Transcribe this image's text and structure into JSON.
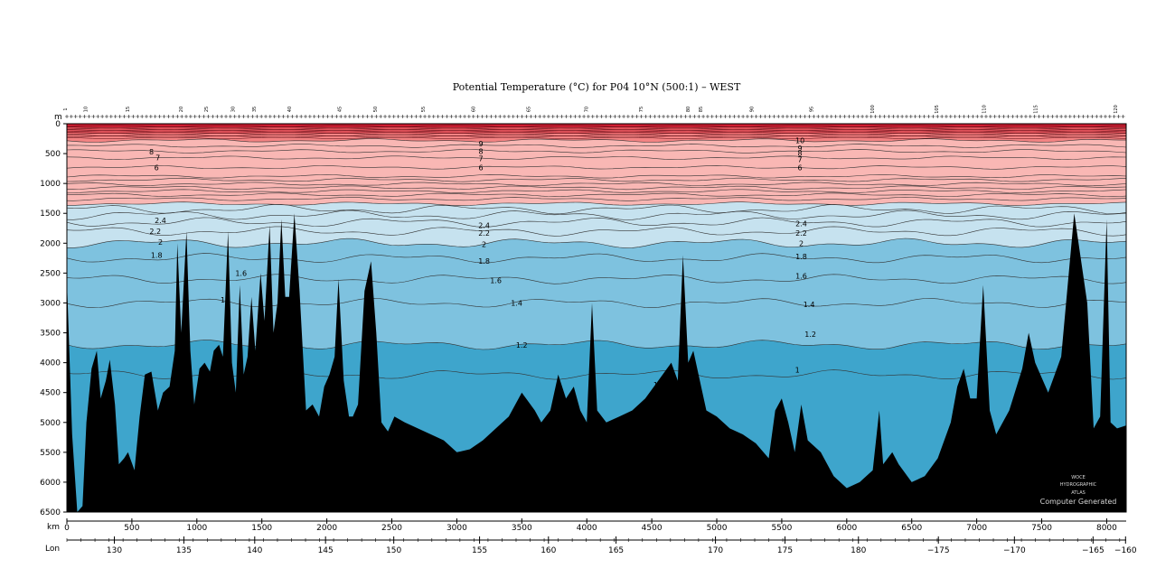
{
  "chart_data": {
    "type": "section",
    "title": "Potential Temperature (°C) for P04 10°N (500:1) – WEST",
    "y_axis_unit": "m",
    "x_axis_unit": "km",
    "lon_axis_label": "Lon",
    "ylim": [
      6500,
      0
    ],
    "xlim": [
      0,
      8150
    ],
    "depth_ticks": [
      0,
      500,
      1000,
      1500,
      2000,
      2500,
      3000,
      3500,
      4000,
      4500,
      5000,
      5500,
      6000,
      6500
    ],
    "km_ticks": [
      0,
      500,
      1000,
      1500,
      2000,
      2500,
      3000,
      3500,
      4000,
      4500,
      5000,
      5500,
      6000,
      6500,
      7000,
      7500,
      8000
    ],
    "lon_ticks": [
      {
        "value": 130,
        "label": "130"
      },
      {
        "value": 135,
        "label": "135"
      },
      {
        "value": 140,
        "label": "140"
      },
      {
        "value": 145,
        "label": "145"
      },
      {
        "value": 150,
        "label": "150"
      },
      {
        "value": 155,
        "label": "155"
      },
      {
        "value": 160,
        "label": "160"
      },
      {
        "value": 165,
        "label": "165"
      },
      {
        "value": 170,
        "label": "170"
      },
      {
        "value": 175,
        "label": "175"
      },
      {
        "value": 180,
        "label": "180"
      },
      {
        "value": -175,
        "label": "−175"
      },
      {
        "value": -170,
        "label": "−170"
      },
      {
        "value": -165,
        "label": "−165"
      },
      {
        "value": -160,
        "label": "−160"
      }
    ],
    "lon_positions_km": [
      365,
      900,
      1445,
      1990,
      2515,
      3175,
      3705,
      4225,
      4990,
      5525,
      6090,
      6705,
      7290,
      7895,
      8145
    ],
    "station_labels": [
      {
        "km": 0,
        "label": "1"
      },
      {
        "km": 155,
        "label": "10"
      },
      {
        "km": 480,
        "label": "15"
      },
      {
        "km": 890,
        "label": "20"
      },
      {
        "km": 1085,
        "label": "25"
      },
      {
        "km": 1290,
        "label": "30"
      },
      {
        "km": 1455,
        "label": "35"
      },
      {
        "km": 1725,
        "label": "40"
      },
      {
        "km": 2110,
        "label": "45"
      },
      {
        "km": 2385,
        "label": "50"
      },
      {
        "km": 2755,
        "label": "55"
      },
      {
        "km": 3140,
        "label": "60"
      },
      {
        "km": 3565,
        "label": "65"
      },
      {
        "km": 4010,
        "label": "70"
      },
      {
        "km": 4430,
        "label": "75"
      },
      {
        "km": 4790,
        "label": "80"
      },
      {
        "km": 4890,
        "label": "85"
      },
      {
        "km": 5280,
        "label": "90"
      },
      {
        "km": 5740,
        "label": "95"
      },
      {
        "km": 6210,
        "label": "100"
      },
      {
        "km": 6705,
        "label": "105"
      },
      {
        "km": 7070,
        "label": "110"
      },
      {
        "km": 7465,
        "label": "115"
      },
      {
        "km": 8080,
        "label": "120"
      }
    ],
    "color_bands": [
      {
        "min": 2.0,
        "max": 3.0,
        "color": "#c6e2ef"
      },
      {
        "min": 1.2,
        "max": 2.0,
        "color": "#7ec2df"
      },
      {
        "min": 0.9,
        "max": 1.2,
        "color": "#3ea5cc"
      },
      {
        "min": 3.0,
        "max": 10.0,
        "color": "#f9b7b4"
      },
      {
        "min": 10.0,
        "max": 20.0,
        "color": "#f48383"
      },
      {
        "min": 20.0,
        "max": 30.0,
        "color": "#d01e32"
      }
    ],
    "isotherm_depths": [
      {
        "value": 1.0,
        "depth": 4200
      },
      {
        "value": 1.2,
        "depth": 3700
      },
      {
        "value": 1.4,
        "depth": 3000
      },
      {
        "value": 1.6,
        "depth": 2600
      },
      {
        "value": 1.8,
        "depth": 2250
      },
      {
        "value": 2.0,
        "depth": 2000
      },
      {
        "value": 2.2,
        "depth": 1800
      },
      {
        "value": 2.4,
        "depth": 1650
      },
      {
        "value": 2.6,
        "depth": 1530
      },
      {
        "value": 2.8,
        "depth": 1430
      },
      {
        "value": 3.0,
        "depth": 1340
      },
      {
        "value": 3.2,
        "depth": 1260
      },
      {
        "value": 3.4,
        "depth": 1190
      },
      {
        "value": 3.6,
        "depth": 1130
      },
      {
        "value": 3.8,
        "depth": 1070
      },
      {
        "value": 4.0,
        "depth": 1010
      },
      {
        "value": 4.5,
        "depth": 940
      },
      {
        "value": 5.0,
        "depth": 880
      },
      {
        "value": 6.0,
        "depth": 730
      },
      {
        "value": 7.0,
        "depth": 570
      },
      {
        "value": 8.0,
        "depth": 460
      },
      {
        "value": 9.0,
        "depth": 370
      },
      {
        "value": 10.0,
        "depth": 280
      }
    ],
    "contour_labels": [
      {
        "km": 650,
        "depth": 470,
        "text": "8"
      },
      {
        "km": 700,
        "depth": 570,
        "text": "7"
      },
      {
        "km": 690,
        "depth": 730,
        "text": "6"
      },
      {
        "km": 720,
        "depth": 1620,
        "text": "2.4"
      },
      {
        "km": 680,
        "depth": 1800,
        "text": "2.2"
      },
      {
        "km": 720,
        "depth": 1980,
        "text": "2"
      },
      {
        "km": 690,
        "depth": 2200,
        "text": "1.8"
      },
      {
        "km": 1340,
        "depth": 2500,
        "text": "1.6"
      },
      {
        "km": 1200,
        "depth": 2950,
        "text": "1"
      },
      {
        "km": 3185,
        "depth": 330,
        "text": "9"
      },
      {
        "km": 3185,
        "depth": 460,
        "text": "8"
      },
      {
        "km": 3185,
        "depth": 580,
        "text": "7"
      },
      {
        "km": 3185,
        "depth": 730,
        "text": "6"
      },
      {
        "km": 3210,
        "depth": 1700,
        "text": "2.4"
      },
      {
        "km": 3210,
        "depth": 1830,
        "text": "2.2"
      },
      {
        "km": 3210,
        "depth": 2020,
        "text": "2"
      },
      {
        "km": 3210,
        "depth": 2300,
        "text": "1.8"
      },
      {
        "km": 3300,
        "depth": 2620,
        "text": "1.6"
      },
      {
        "km": 3460,
        "depth": 3000,
        "text": "1.4"
      },
      {
        "km": 3500,
        "depth": 3700,
        "text": "1.2"
      },
      {
        "km": 4530,
        "depth": 4370,
        "text": "1"
      },
      {
        "km": 5640,
        "depth": 280,
        "text": "10"
      },
      {
        "km": 5640,
        "depth": 410,
        "text": "9"
      },
      {
        "km": 5640,
        "depth": 490,
        "text": "8"
      },
      {
        "km": 5640,
        "depth": 600,
        "text": "7"
      },
      {
        "km": 5640,
        "depth": 730,
        "text": "6"
      },
      {
        "km": 5650,
        "depth": 1670,
        "text": "2.4"
      },
      {
        "km": 5650,
        "depth": 1830,
        "text": "2.2"
      },
      {
        "km": 5650,
        "depth": 2000,
        "text": "2"
      },
      {
        "km": 5650,
        "depth": 2220,
        "text": "1.8"
      },
      {
        "km": 5650,
        "depth": 2550,
        "text": "1.6"
      },
      {
        "km": 5710,
        "depth": 3020,
        "text": "1.4"
      },
      {
        "km": 5720,
        "depth": 3520,
        "text": "1.2"
      },
      {
        "km": 5620,
        "depth": 4120,
        "text": "1"
      }
    ],
    "bathymetry": [
      [
        0,
        2600
      ],
      [
        40,
        5200
      ],
      [
        80,
        6500
      ],
      [
        120,
        6400
      ],
      [
        150,
        5000
      ],
      [
        190,
        4100
      ],
      [
        230,
        3800
      ],
      [
        260,
        4600
      ],
      [
        300,
        4300
      ],
      [
        330,
        3950
      ],
      [
        370,
        4700
      ],
      [
        400,
        5700
      ],
      [
        440,
        5600
      ],
      [
        470,
        5500
      ],
      [
        520,
        5800
      ],
      [
        560,
        4900
      ],
      [
        600,
        4200
      ],
      [
        650,
        4150
      ],
      [
        700,
        4800
      ],
      [
        740,
        4500
      ],
      [
        790,
        4400
      ],
      [
        830,
        3800
      ],
      [
        850,
        2000
      ],
      [
        880,
        3500
      ],
      [
        920,
        1800
      ],
      [
        950,
        3800
      ],
      [
        980,
        4700
      ],
      [
        1020,
        4100
      ],
      [
        1060,
        4000
      ],
      [
        1100,
        4150
      ],
      [
        1130,
        3800
      ],
      [
        1170,
        3700
      ],
      [
        1200,
        3900
      ],
      [
        1240,
        1800
      ],
      [
        1270,
        4000
      ],
      [
        1300,
        4500
      ],
      [
        1330,
        2700
      ],
      [
        1360,
        4200
      ],
      [
        1390,
        3900
      ],
      [
        1420,
        2900
      ],
      [
        1450,
        3800
      ],
      [
        1490,
        2500
      ],
      [
        1520,
        3300
      ],
      [
        1560,
        1700
      ],
      [
        1590,
        3500
      ],
      [
        1620,
        3000
      ],
      [
        1650,
        1600
      ],
      [
        1680,
        2900
      ],
      [
        1710,
        2900
      ],
      [
        1750,
        1500
      ],
      [
        1790,
        2800
      ],
      [
        1840,
        4800
      ],
      [
        1890,
        4700
      ],
      [
        1940,
        4900
      ],
      [
        1980,
        4400
      ],
      [
        2020,
        4200
      ],
      [
        2060,
        3900
      ],
      [
        2090,
        2600
      ],
      [
        2130,
        4300
      ],
      [
        2170,
        4900
      ],
      [
        2200,
        4900
      ],
      [
        2240,
        4700
      ],
      [
        2290,
        2800
      ],
      [
        2340,
        2300
      ],
      [
        2380,
        3500
      ],
      [
        2420,
        5000
      ],
      [
        2470,
        5150
      ],
      [
        2520,
        4900
      ],
      [
        2600,
        5000
      ],
      [
        2700,
        5100
      ],
      [
        2800,
        5200
      ],
      [
        2900,
        5300
      ],
      [
        3000,
        5500
      ],
      [
        3100,
        5450
      ],
      [
        3200,
        5300
      ],
      [
        3300,
        5100
      ],
      [
        3400,
        4900
      ],
      [
        3500,
        4500
      ],
      [
        3600,
        4800
      ],
      [
        3650,
        5000
      ],
      [
        3720,
        4800
      ],
      [
        3780,
        4200
      ],
      [
        3840,
        4600
      ],
      [
        3900,
        4400
      ],
      [
        3950,
        4800
      ],
      [
        4000,
        5000
      ],
      [
        4040,
        3000
      ],
      [
        4080,
        4800
      ],
      [
        4150,
        5000
      ],
      [
        4250,
        4900
      ],
      [
        4350,
        4800
      ],
      [
        4450,
        4600
      ],
      [
        4550,
        4300
      ],
      [
        4650,
        4000
      ],
      [
        4700,
        4300
      ],
      [
        4740,
        2200
      ],
      [
        4780,
        4000
      ],
      [
        4820,
        3800
      ],
      [
        4870,
        4300
      ],
      [
        4920,
        4800
      ],
      [
        5000,
        4900
      ],
      [
        5100,
        5100
      ],
      [
        5200,
        5200
      ],
      [
        5300,
        5350
      ],
      [
        5400,
        5600
      ],
      [
        5450,
        4800
      ],
      [
        5500,
        4600
      ],
      [
        5550,
        5000
      ],
      [
        5600,
        5500
      ],
      [
        5650,
        4700
      ],
      [
        5700,
        5300
      ],
      [
        5800,
        5500
      ],
      [
        5900,
        5900
      ],
      [
        6000,
        6100
      ],
      [
        6100,
        6000
      ],
      [
        6150,
        5900
      ],
      [
        6200,
        5800
      ],
      [
        6250,
        4800
      ],
      [
        6280,
        5700
      ],
      [
        6350,
        5500
      ],
      [
        6400,
        5700
      ],
      [
        6500,
        6000
      ],
      [
        6600,
        5900
      ],
      [
        6700,
        5600
      ],
      [
        6800,
        5000
      ],
      [
        6850,
        4400
      ],
      [
        6900,
        4100
      ],
      [
        6950,
        4600
      ],
      [
        7000,
        4600
      ],
      [
        7050,
        2700
      ],
      [
        7100,
        4800
      ],
      [
        7150,
        5200
      ],
      [
        7250,
        4800
      ],
      [
        7350,
        4100
      ],
      [
        7400,
        3500
      ],
      [
        7450,
        4000
      ],
      [
        7550,
        4500
      ],
      [
        7650,
        3900
      ],
      [
        7750,
        1500
      ],
      [
        7850,
        3000
      ],
      [
        7900,
        5100
      ],
      [
        7950,
        4900
      ],
      [
        8000,
        1600
      ],
      [
        8030,
        5000
      ],
      [
        8080,
        5100
      ],
      [
        8150,
        5050
      ]
    ],
    "watermark": {
      "line1": "WOCE",
      "line2": "HYDROGRAPHIC",
      "line3": "ATLAS",
      "footer": "Computer Generated"
    }
  }
}
